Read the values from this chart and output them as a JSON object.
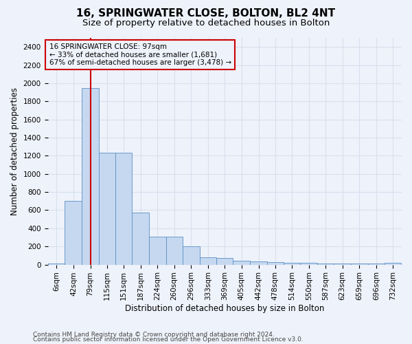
{
  "title": "16, SPRINGWATER CLOSE, BOLTON, BL2 4NT",
  "subtitle": "Size of property relative to detached houses in Bolton",
  "xlabel": "Distribution of detached houses by size in Bolton",
  "ylabel": "Number of detached properties",
  "annotation_title": "16 SPRINGWATER CLOSE: 97sqm",
  "annotation_line2": "← 33% of detached houses are smaller (1,681)",
  "annotation_line3": "67% of semi-detached houses are larger (3,478) →",
  "footer_line1": "Contains HM Land Registry data © Crown copyright and database right 2024.",
  "footer_line2": "Contains public sector information licensed under the Open Government Licence v3.0.",
  "property_size": 97,
  "bar_edges": [
    6,
    42,
    79,
    115,
    151,
    187,
    224,
    260,
    296,
    333,
    369,
    405,
    442,
    478,
    514,
    550,
    587,
    623,
    659,
    696,
    732,
    768
  ],
  "bar_heights": [
    15,
    705,
    1950,
    1230,
    1230,
    575,
    310,
    310,
    205,
    80,
    75,
    45,
    38,
    30,
    20,
    18,
    15,
    12,
    10,
    10,
    20
  ],
  "bar_color": "#c5d8f0",
  "bar_edge_color": "#5b8fc5",
  "vline_x": 97,
  "vline_color": "#cc0000",
  "ylim": [
    0,
    2500
  ],
  "yticks": [
    0,
    200,
    400,
    600,
    800,
    1000,
    1200,
    1400,
    1600,
    1800,
    2000,
    2200,
    2400
  ],
  "annotation_box_color": "#cc0000",
  "bg_color": "#eef2fa",
  "grid_color": "#d8e0ef",
  "title_fontsize": 11,
  "subtitle_fontsize": 9.5,
  "axis_label_fontsize": 8.5,
  "tick_fontsize": 7.5,
  "footer_fontsize": 6.5
}
